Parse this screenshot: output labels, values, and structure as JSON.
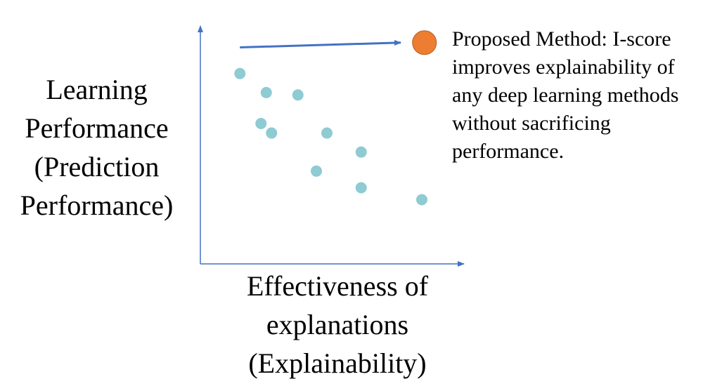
{
  "chart_data": {
    "type": "scatter",
    "title": "",
    "ylabel_lines": [
      "Learning",
      "Performance",
      "(Prediction",
      "Performance)"
    ],
    "xlabel_lines": [
      "Effectiveness of",
      "explanations",
      "(Explainability)"
    ],
    "grid": false,
    "colors": {
      "points": "#8ecbd3",
      "highlight": "#ed7d31",
      "highlight_edge": "#b85a1e",
      "axis": "#4472c4",
      "arrow": "#4472c4"
    },
    "series": [
      {
        "points": [
          {
            "x": 0.15,
            "y": 0.8
          },
          {
            "x": 0.25,
            "y": 0.72
          },
          {
            "x": 0.37,
            "y": 0.71
          },
          {
            "x": 0.23,
            "y": 0.59
          },
          {
            "x": 0.27,
            "y": 0.55
          },
          {
            "x": 0.48,
            "y": 0.55
          },
          {
            "x": 0.61,
            "y": 0.47
          },
          {
            "x": 0.44,
            "y": 0.39
          },
          {
            "x": 0.61,
            "y": 0.32
          },
          {
            "x": 0.84,
            "y": 0.27
          }
        ]
      }
    ],
    "highlight_point": {
      "x": 0.85,
      "y": 0.93
    },
    "arrow": {
      "from": {
        "x": 0.15,
        "y": 0.91
      },
      "to": {
        "x": 0.76,
        "y": 0.93
      }
    },
    "annotation_lines": [
      "Proposed Method: I-score",
      "improves explainability of",
      "any deep learning methods",
      "without sacrificing",
      "performance."
    ]
  }
}
